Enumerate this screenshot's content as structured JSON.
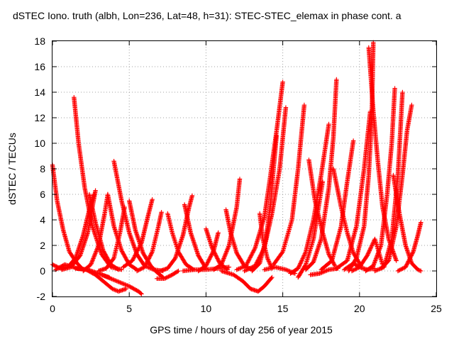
{
  "chart_data": {
    "type": "scatter",
    "title": "dSTEC Iono. truth (albh, Lon=236, Lat=48, h=31): STEC-STEC_elemax in phase cont. a",
    "xlabel": "GPS time / hours of day 256 of year 2015",
    "ylabel": "dSTEC  / TECUs",
    "xlim": [
      0,
      25
    ],
    "ylim": [
      -2,
      18
    ],
    "xticks": [
      "0",
      "5",
      "10",
      "15",
      "20",
      "25"
    ],
    "yticks": [
      "-2",
      "0",
      "2",
      "4",
      "6",
      "8",
      "10",
      "12",
      "14",
      "16",
      "18"
    ],
    "grid": true,
    "marker": "+",
    "color": "#ff0000",
    "series": [
      {
        "x": [
          0.0,
          0.3,
          0.7,
          1.1,
          1.6,
          2.0
        ],
        "y": [
          8.3,
          5.5,
          3.2,
          1.5,
          0.6,
          0.1
        ]
      },
      {
        "x": [
          0.0,
          0.5,
          1.0,
          1.5,
          2.0,
          2.4,
          2.7
        ],
        "y": [
          0.5,
          0.2,
          0.3,
          1.0,
          2.8,
          4.8,
          6.0
        ]
      },
      {
        "x": [
          0.2,
          0.8,
          1.6,
          2.3,
          3.0,
          3.7
        ],
        "y": [
          0.1,
          0.5,
          0.2,
          0.1,
          -0.2,
          -0.5
        ]
      },
      {
        "x": [
          1.4,
          1.7,
          2.1,
          2.6,
          3.2,
          3.8,
          4.5
        ],
        "y": [
          13.6,
          10.0,
          6.5,
          3.5,
          1.3,
          0.3,
          0.1
        ]
      },
      {
        "x": [
          0.6,
          1.2,
          1.8,
          2.3,
          2.6,
          2.8
        ],
        "y": [
          0.1,
          0.3,
          1.2,
          3.0,
          5.0,
          6.3
        ]
      },
      {
        "x": [
          2.4,
          2.8,
          3.3,
          3.8,
          4.3
        ],
        "y": [
          6.0,
          3.8,
          1.6,
          0.5,
          0.1
        ]
      },
      {
        "x": [
          1.5,
          2.2,
          2.8,
          3.4,
          3.9,
          4.3,
          4.8
        ],
        "y": [
          0.2,
          0.1,
          -0.3,
          -0.9,
          -1.4,
          -1.6,
          -1.4
        ]
      },
      {
        "x": [
          2.0,
          2.5,
          3.0,
          3.4,
          3.6
        ],
        "y": [
          0.0,
          0.5,
          2.0,
          4.5,
          6.0
        ]
      },
      {
        "x": [
          3.6,
          4.0,
          4.5,
          5.0,
          5.5
        ],
        "y": [
          6.0,
          3.5,
          1.6,
          0.5,
          0.1
        ]
      },
      {
        "x": [
          3.2,
          4.2,
          5.0,
          5.6,
          5.8
        ],
        "y": [
          -0.3,
          -0.8,
          -1.2,
          -1.6,
          -1.8
        ]
      },
      {
        "x": [
          4.0,
          4.5,
          5.0,
          5.5,
          6.0,
          6.6,
          7.2
        ],
        "y": [
          8.6,
          5.5,
          3.0,
          1.3,
          0.4,
          0.1,
          0.0
        ]
      },
      {
        "x": [
          3.0,
          3.5,
          4.0,
          4.4,
          4.7
        ],
        "y": [
          0.0,
          0.2,
          1.0,
          3.0,
          5.0
        ]
      },
      {
        "x": [
          5.0,
          5.4,
          5.9,
          6.4,
          6.8,
          7.2
        ],
        "y": [
          5.5,
          3.2,
          1.4,
          0.4,
          -0.1,
          -0.5
        ]
      },
      {
        "x": [
          4.6,
          5.2,
          5.8,
          6.2,
          6.5
        ],
        "y": [
          0.3,
          0.8,
          2.2,
          4.2,
          5.6
        ]
      },
      {
        "x": [
          5.5,
          6.0,
          6.5,
          6.9,
          7.1
        ],
        "y": [
          0.0,
          0.3,
          1.5,
          3.5,
          4.6
        ]
      },
      {
        "x": [
          6.8,
          7.3,
          7.8,
          8.2
        ],
        "y": [
          -0.6,
          -0.6,
          -0.3,
          0.0
        ]
      },
      {
        "x": [
          7.5,
          7.8,
          8.2,
          8.7,
          9.2
        ],
        "y": [
          4.5,
          3.0,
          1.5,
          0.5,
          0.1
        ]
      },
      {
        "x": [
          7.0,
          7.5,
          8.0,
          8.5,
          8.9,
          9.1
        ],
        "y": [
          0.0,
          0.2,
          1.0,
          2.8,
          5.0,
          5.9
        ]
      },
      {
        "x": [
          8.6,
          9.0,
          9.5,
          10.0
        ],
        "y": [
          5.2,
          3.0,
          1.2,
          0.2
        ]
      },
      {
        "x": [
          8.5,
          9.2,
          10.0,
          10.8,
          11.5
        ],
        "y": [
          0.0,
          0.1,
          0.1,
          0.2,
          0.3
        ]
      },
      {
        "x": [
          10.0,
          10.4,
          10.9,
          11.4
        ],
        "y": [
          3.3,
          1.8,
          0.6,
          0.1
        ]
      },
      {
        "x": [
          9.5,
          10.0,
          10.5,
          10.8
        ],
        "y": [
          0.0,
          0.4,
          1.6,
          3.0
        ]
      },
      {
        "x": [
          11.3,
          11.6,
          12.0,
          12.5,
          13.0
        ],
        "y": [
          4.8,
          3.0,
          1.4,
          0.4,
          0.1
        ]
      },
      {
        "x": [
          10.5,
          11.0,
          11.5,
          12.0,
          12.2
        ],
        "y": [
          0.1,
          0.5,
          2.0,
          5.0,
          7.2
        ]
      },
      {
        "x": [
          11.0,
          11.8,
          12.4,
          12.9,
          13.4,
          13.8,
          14.3
        ],
        "y": [
          0.0,
          -0.3,
          -0.8,
          -1.4,
          -1.6,
          -1.2,
          -0.5
        ]
      },
      {
        "x": [
          12.0,
          12.6,
          13.2,
          13.8,
          14.2,
          14.6,
          15.0
        ],
        "y": [
          0.1,
          0.4,
          1.8,
          4.2,
          7.5,
          11.0,
          14.8
        ]
      },
      {
        "x": [
          12.5,
          13.2,
          13.8,
          14.3,
          14.8,
          15.2
        ],
        "y": [
          0.0,
          0.4,
          1.8,
          4.5,
          8.0,
          12.8
        ]
      },
      {
        "x": [
          13.0,
          13.5,
          13.9,
          14.2,
          14.4,
          14.6
        ],
        "y": [
          0.0,
          0.6,
          2.5,
          5.2,
          8.0,
          10.6
        ]
      },
      {
        "x": [
          13.5,
          13.7,
          14.0,
          14.3
        ],
        "y": [
          4.5,
          2.5,
          1.0,
          0.2
        ]
      },
      {
        "x": [
          13.8,
          14.5,
          15.2,
          15.8
        ],
        "y": [
          0.1,
          0.3,
          0.1,
          -0.2
        ]
      },
      {
        "x": [
          14.4,
          15.0,
          15.6,
          16.0,
          16.4
        ],
        "y": [
          0.5,
          1.5,
          4.0,
          8.0,
          13.0
        ]
      },
      {
        "x": [
          15.5,
          16.0,
          16.5,
          17.0,
          17.5,
          18.0
        ],
        "y": [
          -0.2,
          0.2,
          1.5,
          4.0,
          7.5,
          11.5
        ]
      },
      {
        "x": [
          16.5,
          17.0,
          17.5,
          18.0,
          18.3,
          18.5
        ],
        "y": [
          0.1,
          0.7,
          2.5,
          6.5,
          10.5,
          15.0
        ]
      },
      {
        "x": [
          16.0,
          16.5,
          17.0,
          17.4,
          17.6
        ],
        "y": [
          -0.5,
          0.5,
          2.5,
          5.5,
          7.0
        ]
      },
      {
        "x": [
          16.7,
          17.1,
          17.6,
          18.0,
          18.4
        ],
        "y": [
          8.7,
          5.5,
          3.0,
          1.3,
          0.4
        ]
      },
      {
        "x": [
          16.8,
          17.4,
          18.0,
          18.6
        ],
        "y": [
          -0.3,
          -0.2,
          0.1,
          0.2
        ]
      },
      {
        "x": [
          18.3,
          18.8,
          19.2,
          19.6,
          20.1
        ],
        "y": [
          8.0,
          5.0,
          3.0,
          1.4,
          0.4
        ]
      },
      {
        "x": [
          17.5,
          18.2,
          18.8,
          19.2,
          19.6
        ],
        "y": [
          0.1,
          0.8,
          3.5,
          7.0,
          10.2
        ]
      },
      {
        "x": [
          18.5,
          19.2,
          19.8,
          20.3,
          20.7
        ],
        "y": [
          0.2,
          0.8,
          3.5,
          8.0,
          12.5
        ]
      },
      {
        "x": [
          19.0,
          19.6,
          20.0,
          20.5,
          21.0
        ],
        "y": [
          0.1,
          0.6,
          0.3,
          0.1,
          0.2
        ]
      },
      {
        "x": [
          19.3,
          19.8,
          20.3,
          20.6,
          20.8,
          20.9
        ],
        "y": [
          0.0,
          1.0,
          3.5,
          7.5,
          12.0,
          17.9
        ]
      },
      {
        "x": [
          20.6,
          20.9,
          21.2,
          21.5,
          21.9,
          22.4
        ],
        "y": [
          17.5,
          12.5,
          8.5,
          5.0,
          2.5,
          0.8
        ]
      },
      {
        "x": [
          20.4,
          20.9,
          21.4,
          21.8,
          22.1,
          22.3
        ],
        "y": [
          0.0,
          0.4,
          2.0,
          6.0,
          10.0,
          14.3
        ]
      },
      {
        "x": [
          21.0,
          21.6,
          22.1,
          22.5,
          22.8
        ],
        "y": [
          0.0,
          0.3,
          2.5,
          7.5,
          14.0
        ]
      },
      {
        "x": [
          21.4,
          21.9,
          22.4,
          22.8,
          23.1,
          23.4
        ],
        "y": [
          0.2,
          0.8,
          3.5,
          7.5,
          11.0,
          13.0
        ]
      },
      {
        "x": [
          22.2,
          22.6,
          23.0,
          23.4,
          23.8,
          24.0
        ],
        "y": [
          7.5,
          4.5,
          2.0,
          0.6,
          0.1,
          0.0
        ]
      },
      {
        "x": [
          22.5,
          23.0,
          23.5,
          23.8,
          24.0
        ],
        "y": [
          0.0,
          0.3,
          1.5,
          2.8,
          3.8
        ]
      },
      {
        "x": [
          19.5,
          20.0,
          20.5,
          21.0,
          21.5
        ],
        "y": [
          0.0,
          0.3,
          1.2,
          2.5,
          0.5
        ]
      }
    ]
  }
}
